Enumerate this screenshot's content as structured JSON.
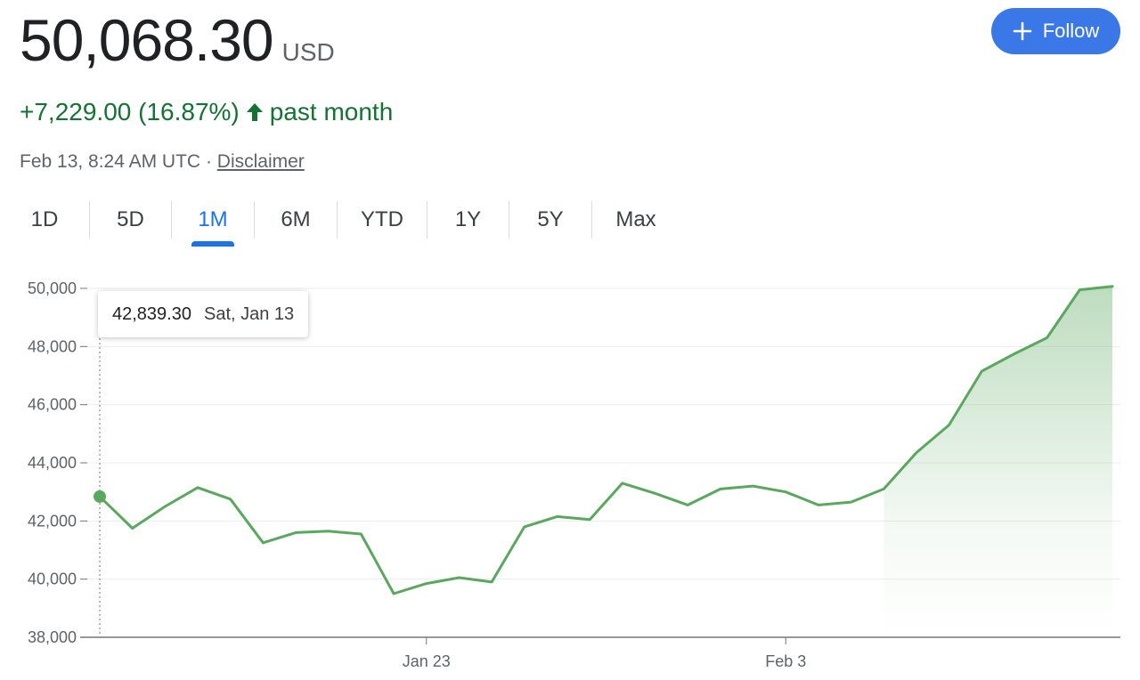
{
  "header": {
    "price": "50,068.30",
    "currency": "USD",
    "change": "+7,229.00 (16.87%)",
    "change_period": "past month",
    "timestamp": "Feb 13, 8:24 AM UTC",
    "separator": "·",
    "disclaimer": "Disclaimer",
    "follow_label": "Follow"
  },
  "tabs": [
    {
      "label": "1D",
      "active": false
    },
    {
      "label": "5D",
      "active": false
    },
    {
      "label": "1M",
      "active": true
    },
    {
      "label": "6M",
      "active": false
    },
    {
      "label": "YTD",
      "active": false
    },
    {
      "label": "1Y",
      "active": false
    },
    {
      "label": "5Y",
      "active": false
    },
    {
      "label": "Max",
      "active": false
    }
  ],
  "tooltip": {
    "value": "42,839.30",
    "date": "Sat, Jan 13"
  },
  "colors": {
    "up": "#137333",
    "line": "#5aa85e",
    "accent": "#1a73e8",
    "button": "#3b78e7"
  },
  "chart_data": {
    "type": "area",
    "title": "",
    "xlabel": "",
    "ylabel": "",
    "x_start": "2024-01-13",
    "x_end": "2024-02-13",
    "x_ticks": [
      {
        "date": "2024-01-23",
        "label": "Jan 23"
      },
      {
        "date": "2024-02-03",
        "label": "Feb 3"
      }
    ],
    "ylim": [
      38000,
      50000
    ],
    "y_ticks": [
      {
        "value": 38000,
        "label": "38,000"
      },
      {
        "value": 40000,
        "label": "40,000"
      },
      {
        "value": 42000,
        "label": "42,000"
      },
      {
        "value": 44000,
        "label": "44,000"
      },
      {
        "value": 46000,
        "label": "46,000"
      },
      {
        "value": 48000,
        "label": "48,000"
      },
      {
        "value": 50000,
        "label": "50,000"
      }
    ],
    "grid": true,
    "highlight": {
      "date": "2024-01-13",
      "value": 42839.3
    },
    "series": [
      {
        "x": [
          "2024-01-13",
          "2024-01-14",
          "2024-01-15",
          "2024-01-16",
          "2024-01-17",
          "2024-01-18",
          "2024-01-19",
          "2024-01-20",
          "2024-01-21",
          "2024-01-22",
          "2024-01-23",
          "2024-01-24",
          "2024-01-25",
          "2024-01-26",
          "2024-01-27",
          "2024-01-28",
          "2024-01-29",
          "2024-01-30",
          "2024-01-31",
          "2024-02-01",
          "2024-02-02",
          "2024-02-03",
          "2024-02-04",
          "2024-02-05",
          "2024-02-06",
          "2024-02-07",
          "2024-02-08",
          "2024-02-09",
          "2024-02-10",
          "2024-02-11",
          "2024-02-12",
          "2024-02-13"
        ],
        "values": [
          42839.3,
          41750,
          42500,
          43150,
          42750,
          41250,
          41600,
          41650,
          41550,
          39500,
          39850,
          40050,
          39900,
          41800,
          42150,
          42050,
          43300,
          42950,
          42550,
          43100,
          43200,
          43000,
          42550,
          42650,
          43100,
          44350,
          45300,
          47150,
          47750,
          48300,
          49950,
          50068.3
        ]
      }
    ]
  }
}
